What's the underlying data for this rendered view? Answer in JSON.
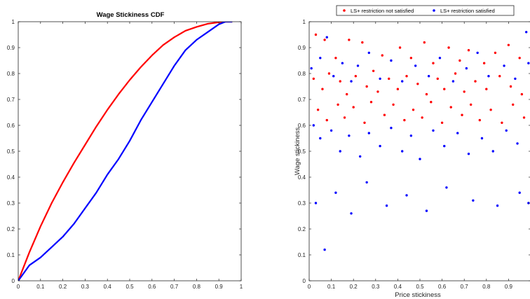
{
  "chart_data": [
    {
      "type": "line",
      "title": "Wage Stickiness CDF",
      "xlabel": "",
      "ylabel": "",
      "xlim": [
        0,
        1
      ],
      "ylim": [
        0,
        1
      ],
      "xticks": [
        0,
        0.1,
        0.2,
        0.3,
        0.4,
        0.5,
        0.6,
        0.7,
        0.8,
        0.9,
        1
      ],
      "yticks": [
        0,
        0.1,
        0.2,
        0.3,
        0.4,
        0.5,
        0.6,
        0.7,
        0.8,
        0.9,
        1
      ],
      "grid": false,
      "series": [
        {
          "color": "#ff0000",
          "x": [
            0,
            0.05,
            0.1,
            0.15,
            0.2,
            0.25,
            0.3,
            0.35,
            0.4,
            0.45,
            0.5,
            0.55,
            0.6,
            0.65,
            0.7,
            0.75,
            0.8,
            0.85,
            0.9,
            0.93,
            0.96
          ],
          "y": [
            0,
            0.11,
            0.21,
            0.3,
            0.38,
            0.455,
            0.525,
            0.595,
            0.66,
            0.72,
            0.775,
            0.825,
            0.87,
            0.91,
            0.94,
            0.965,
            0.98,
            0.992,
            0.998,
            1.0,
            1.0
          ]
        },
        {
          "color": "#0000ff",
          "x": [
            0,
            0.05,
            0.1,
            0.15,
            0.2,
            0.25,
            0.3,
            0.35,
            0.4,
            0.45,
            0.5,
            0.55,
            0.6,
            0.65,
            0.7,
            0.75,
            0.8,
            0.85,
            0.9,
            0.93,
            0.96
          ],
          "y": [
            0,
            0.06,
            0.09,
            0.13,
            0.17,
            0.22,
            0.28,
            0.34,
            0.41,
            0.47,
            0.54,
            0.62,
            0.69,
            0.76,
            0.83,
            0.89,
            0.93,
            0.96,
            0.99,
            1.0,
            1.0
          ]
        }
      ]
    },
    {
      "type": "scatter",
      "title": "",
      "xlabel": "Price stickiness",
      "ylabel": "Wage stickiness",
      "xlim": [
        0,
        1
      ],
      "ylim": [
        0,
        1
      ],
      "xticks": [
        0,
        0.1,
        0.2,
        0.3,
        0.4,
        0.5,
        0.6,
        0.7,
        0.8,
        0.9
      ],
      "yticks": [
        0,
        0.1,
        0.2,
        0.3,
        0.4,
        0.5,
        0.6,
        0.7,
        0.8,
        0.9,
        1
      ],
      "grid": false,
      "legend_position": "top",
      "series": [
        {
          "name": "LS+ restriction not satisfied",
          "color": "#ff0000",
          "points": [
            [
              0.03,
              0.95
            ],
            [
              0.07,
              0.93
            ],
            [
              0.12,
              0.86
            ],
            [
              0.18,
              0.93
            ],
            [
              0.24,
              0.92
            ],
            [
              0.29,
              0.81
            ],
            [
              0.33,
              0.87
            ],
            [
              0.41,
              0.9
            ],
            [
              0.46,
              0.86
            ],
            [
              0.52,
              0.92
            ],
            [
              0.56,
              0.84
            ],
            [
              0.63,
              0.9
            ],
            [
              0.68,
              0.85
            ],
            [
              0.72,
              0.89
            ],
            [
              0.79,
              0.84
            ],
            [
              0.84,
              0.88
            ],
            [
              0.9,
              0.91
            ],
            [
              0.95,
              0.86
            ],
            [
              0.02,
              0.78
            ],
            [
              0.06,
              0.74
            ],
            [
              0.09,
              0.8
            ],
            [
              0.14,
              0.77
            ],
            [
              0.17,
              0.72
            ],
            [
              0.21,
              0.79
            ],
            [
              0.26,
              0.75
            ],
            [
              0.31,
              0.73
            ],
            [
              0.36,
              0.78
            ],
            [
              0.4,
              0.74
            ],
            [
              0.44,
              0.79
            ],
            [
              0.49,
              0.76
            ],
            [
              0.53,
              0.72
            ],
            [
              0.58,
              0.78
            ],
            [
              0.61,
              0.74
            ],
            [
              0.66,
              0.8
            ],
            [
              0.7,
              0.73
            ],
            [
              0.75,
              0.77
            ],
            [
              0.8,
              0.74
            ],
            [
              0.86,
              0.79
            ],
            [
              0.91,
              0.75
            ],
            [
              0.96,
              0.72
            ],
            [
              0.04,
              0.66
            ],
            [
              0.08,
              0.62
            ],
            [
              0.13,
              0.68
            ],
            [
              0.16,
              0.63
            ],
            [
              0.2,
              0.67
            ],
            [
              0.25,
              0.61
            ],
            [
              0.28,
              0.69
            ],
            [
              0.34,
              0.64
            ],
            [
              0.38,
              0.68
            ],
            [
              0.43,
              0.62
            ],
            [
              0.47,
              0.66
            ],
            [
              0.51,
              0.63
            ],
            [
              0.55,
              0.69
            ],
            [
              0.6,
              0.61
            ],
            [
              0.64,
              0.67
            ],
            [
              0.69,
              0.64
            ],
            [
              0.73,
              0.68
            ],
            [
              0.77,
              0.62
            ],
            [
              0.82,
              0.66
            ],
            [
              0.87,
              0.61
            ],
            [
              0.92,
              0.68
            ],
            [
              0.97,
              0.63
            ]
          ]
        },
        {
          "name": "LS+ restriction satisfied",
          "color": "#0000ff",
          "points": [
            [
              0.01,
              0.82
            ],
            [
              0.05,
              0.86
            ],
            [
              0.08,
              0.94
            ],
            [
              0.11,
              0.79
            ],
            [
              0.15,
              0.84
            ],
            [
              0.19,
              0.77
            ],
            [
              0.22,
              0.83
            ],
            [
              0.27,
              0.88
            ],
            [
              0.32,
              0.78
            ],
            [
              0.37,
              0.85
            ],
            [
              0.42,
              0.77
            ],
            [
              0.48,
              0.83
            ],
            [
              0.54,
              0.79
            ],
            [
              0.59,
              0.86
            ],
            [
              0.65,
              0.77
            ],
            [
              0.71,
              0.82
            ],
            [
              0.76,
              0.88
            ],
            [
              0.81,
              0.79
            ],
            [
              0.88,
              0.83
            ],
            [
              0.93,
              0.78
            ],
            [
              0.98,
              0.96
            ],
            [
              0.02,
              0.6
            ],
            [
              0.05,
              0.55
            ],
            [
              0.1,
              0.58
            ],
            [
              0.14,
              0.5
            ],
            [
              0.18,
              0.56
            ],
            [
              0.23,
              0.48
            ],
            [
              0.27,
              0.57
            ],
            [
              0.32,
              0.52
            ],
            [
              0.37,
              0.59
            ],
            [
              0.42,
              0.5
            ],
            [
              0.46,
              0.56
            ],
            [
              0.5,
              0.47
            ],
            [
              0.56,
              0.58
            ],
            [
              0.61,
              0.52
            ],
            [
              0.67,
              0.57
            ],
            [
              0.72,
              0.49
            ],
            [
              0.78,
              0.55
            ],
            [
              0.83,
              0.5
            ],
            [
              0.89,
              0.58
            ],
            [
              0.94,
              0.53
            ],
            [
              0.99,
              0.84
            ],
            [
              0.03,
              0.3
            ],
            [
              0.07,
              0.12
            ],
            [
              0.12,
              0.34
            ],
            [
              0.19,
              0.26
            ],
            [
              0.26,
              0.38
            ],
            [
              0.35,
              0.29
            ],
            [
              0.44,
              0.33
            ],
            [
              0.53,
              0.27
            ],
            [
              0.62,
              0.36
            ],
            [
              0.74,
              0.31
            ],
            [
              0.85,
              0.29
            ],
            [
              0.95,
              0.34
            ],
            [
              0.99,
              0.3
            ]
          ]
        }
      ]
    }
  ]
}
